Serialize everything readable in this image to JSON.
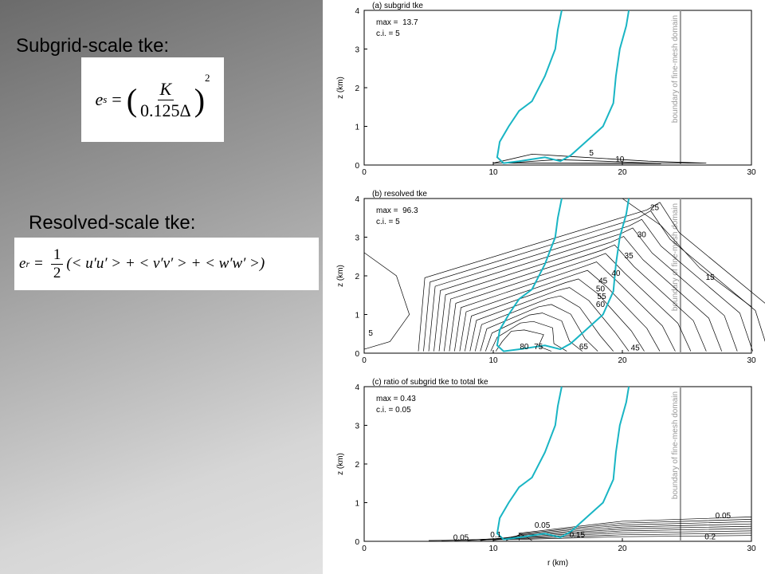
{
  "slide": {
    "subgrid_heading": "Subgrid-scale tke:",
    "subgrid_equation": {
      "lhs": "e",
      "lhs_sub": "s",
      "equals": "=",
      "numerator": "K",
      "denominator": "0.125Δ",
      "exponent": "2"
    },
    "resolved_heading": "Resolved-scale tke:",
    "resolved_equation": {
      "lhs": "e",
      "lhs_sub": "r",
      "equals": "=",
      "numerator": "1",
      "denominator": "2",
      "body": "(< u′u′ > + < v′v′ > + < w′w′ >)"
    }
  },
  "panels": [
    {
      "title": "(a) subgrid tke",
      "max_label": "max =  13.7",
      "ci_label": "c.i. = 5",
      "y_label": "z (km)",
      "boundary_label": "boundary of fine-mesh domain",
      "xticks": [
        0,
        10,
        20,
        30
      ],
      "yticks": [
        0,
        1,
        2,
        3,
        4
      ],
      "contour_labels": [
        "5",
        "10"
      ]
    },
    {
      "title": "(b) resolved tke",
      "max_label": "max =  96.3",
      "ci_label": "c.i. = 5",
      "y_label": "z (km)",
      "boundary_label": "boundary of fine-mesh domain",
      "xticks": [
        0,
        10,
        20,
        30
      ],
      "yticks": [
        0,
        1,
        2,
        3,
        4
      ],
      "contour_labels": [
        "5",
        "15",
        "25",
        "30",
        "35",
        "40",
        "45",
        "50",
        "55",
        "60",
        "80",
        "75",
        "65",
        "45"
      ]
    },
    {
      "title": "(c) ratio of subgrid tke to total tke",
      "max_label": "max = 0.43",
      "ci_label": "c.i. = 0.05",
      "y_label": "z (km)",
      "x_label": "r (km)",
      "boundary_label": "boundary of fine-mesh domain",
      "xticks": [
        0,
        10,
        20,
        30
      ],
      "yticks": [
        0,
        1,
        2,
        3,
        4
      ],
      "contour_labels": [
        "0.05",
        "0.1",
        "0.15",
        "0.2",
        "0.05",
        "0.05"
      ]
    }
  ]
}
